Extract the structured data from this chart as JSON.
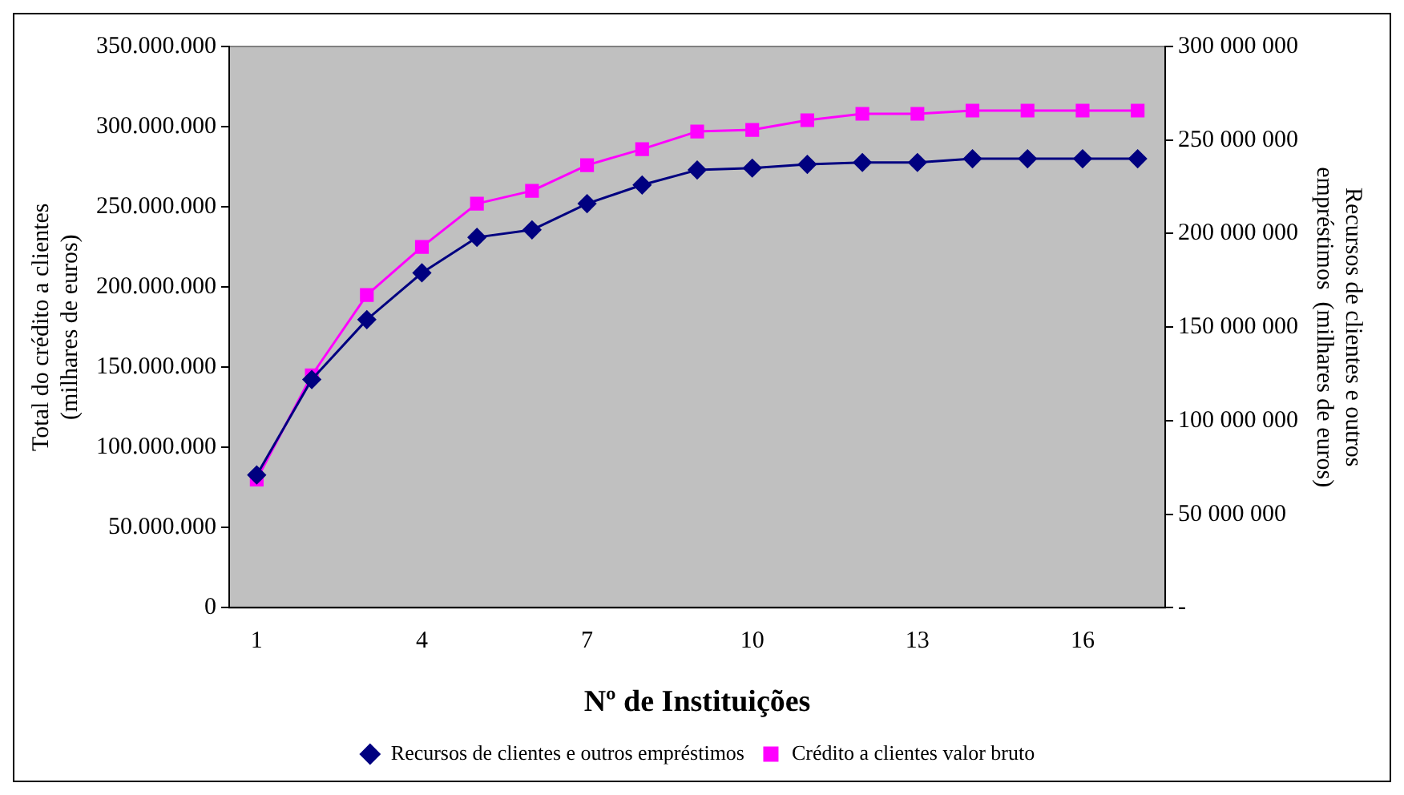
{
  "chart_data": {
    "type": "line",
    "xlabel": "Nº de Instituições",
    "ylabel": "Total do crédito a clientes  (milhares de euros)",
    "y2label": "Recursos de clientes e outros empréstimos  (milhares de euros)",
    "categories": [
      "1",
      null,
      null,
      "4",
      null,
      null,
      "7",
      null,
      null,
      "10",
      null,
      null,
      "13",
      null,
      null,
      "16",
      null
    ],
    "series": [
      {
        "name": "Crédito a clientes valor bruto",
        "color": "#ff00ff",
        "marker": "square",
        "values": [
          80000000,
          145000000,
          195000000,
          225000000,
          252000000,
          260000000,
          276000000,
          286000000,
          297000000,
          298000000,
          304000000,
          308000000,
          308000000,
          310000000,
          310000000,
          310000000,
          310000000
        ]
      },
      {
        "name": "Recursos de clientes e outros empréstimos",
        "color": "#000080",
        "marker": "diamond",
        "axis": "y2",
        "values": [
          71000000,
          122000000,
          154000000,
          179000000,
          198000000,
          202000000,
          216000000,
          226000000,
          234000000,
          235000000,
          237000000,
          238000000,
          238000000,
          240000000,
          240000000,
          240000000,
          240000000
        ]
      }
    ],
    "ylim": [
      0,
      350000000
    ],
    "yticks": [
      {
        "value": 0,
        "label": "0"
      },
      {
        "value": 50000000,
        "label": "50.000.000"
      },
      {
        "value": 100000000,
        "label": "100.000.000"
      },
      {
        "value": 150000000,
        "label": "150.000.000"
      },
      {
        "value": 200000000,
        "label": "200.000.000"
      },
      {
        "value": 250000000,
        "label": "250.000.000"
      },
      {
        "value": 300000000,
        "label": "300.000.000"
      },
      {
        "value": 350000000,
        "label": "350.000.000"
      }
    ],
    "y2lim": [
      0,
      300000000
    ],
    "y2ticks": [
      {
        "value": 0,
        "label": "-"
      },
      {
        "value": 50000000,
        "label": "50 000 000"
      },
      {
        "value": 100000000,
        "label": "100 000 000"
      },
      {
        "value": 150000000,
        "label": "150 000 000"
      },
      {
        "value": 200000000,
        "label": "200 000 000"
      },
      {
        "value": 250000000,
        "label": "250 000 000"
      },
      {
        "value": 300000000,
        "label": "300 000 000"
      }
    ],
    "grid": false,
    "legend": "bottom",
    "line_style": "solid"
  }
}
